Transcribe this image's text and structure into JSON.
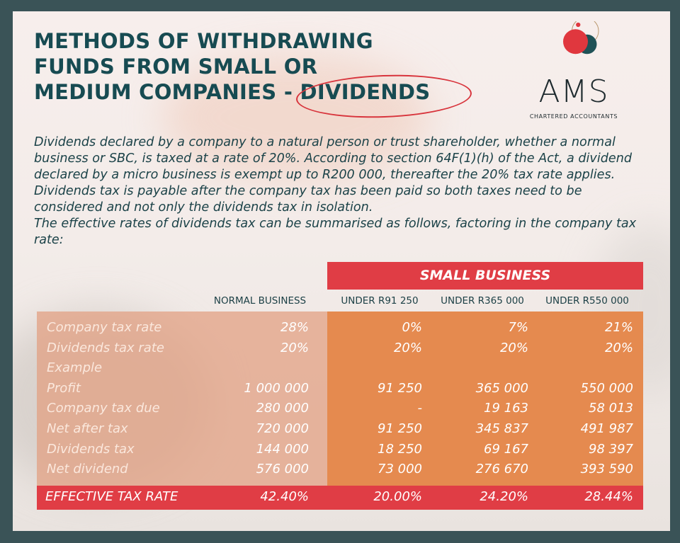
{
  "title_lines": [
    "METHODS OF WITHDRAWING",
    "FUNDS FROM SMALL OR",
    "MEDIUM COMPANIES - DIVIDENDS"
  ],
  "logo": {
    "text": "AMS",
    "subtitle": "CHARTERED ACCOUNTANTS",
    "colors": {
      "red": "#e0373e",
      "teal": "#1f5257",
      "gold": "#b8956a"
    }
  },
  "paragraph": [
    "Dividends declared by a company to a natural person or trust shareholder, whether a normal business or SBC, is taxed at a rate of 20%. According to section 64F(1)(h) of the Act, a dividend declared by a micro business is exempt up to R200 000, thereafter the 20% tax rate applies. Dividends tax is payable after the company tax has been paid so both taxes need to be considered and not only the dividends tax in isolation.",
    "The effective rates of dividends tax can be summarised as follows, factoring in the company tax rate:"
  ],
  "table": {
    "group_header": "SMALL BUSINESS",
    "columns": [
      "NORMAL BUSINESS",
      "UNDER R91 250",
      "UNDER R365 000",
      "UNDER R550 000"
    ],
    "rows": [
      {
        "label": "Company tax rate",
        "values": [
          "28%",
          "0%",
          "7%",
          "21%"
        ]
      },
      {
        "label": "Dividends tax rate",
        "values": [
          "20%",
          "20%",
          "20%",
          "20%"
        ]
      },
      {
        "label": "Example",
        "values": [
          "",
          "",
          "",
          ""
        ]
      },
      {
        "label": "Profit",
        "values": [
          "1 000 000",
          "91 250",
          "365 000",
          "550 000"
        ]
      },
      {
        "label": "Company tax due",
        "values": [
          "280 000",
          "-",
          "19 163",
          "58 013"
        ]
      },
      {
        "label": "Net after tax",
        "values": [
          "720 000",
          "91 250",
          "345 837",
          "491 987"
        ]
      },
      {
        "label": "Dividends tax",
        "values": [
          "144 000",
          "18 250",
          "69 167",
          "98 397"
        ]
      },
      {
        "label": "Net dividend",
        "values": [
          "576 000",
          "73 000",
          "276 670",
          "393 590"
        ]
      }
    ],
    "effective": {
      "label": "EFFECTIVE TAX RATE",
      "values": [
        "42.40%",
        "20.00%",
        "24.20%",
        "28.44%"
      ]
    }
  },
  "colors": {
    "title": "#174b52",
    "accent_red": "#e03d45",
    "orange": "#e58a4f",
    "frame": "#3a5357"
  }
}
